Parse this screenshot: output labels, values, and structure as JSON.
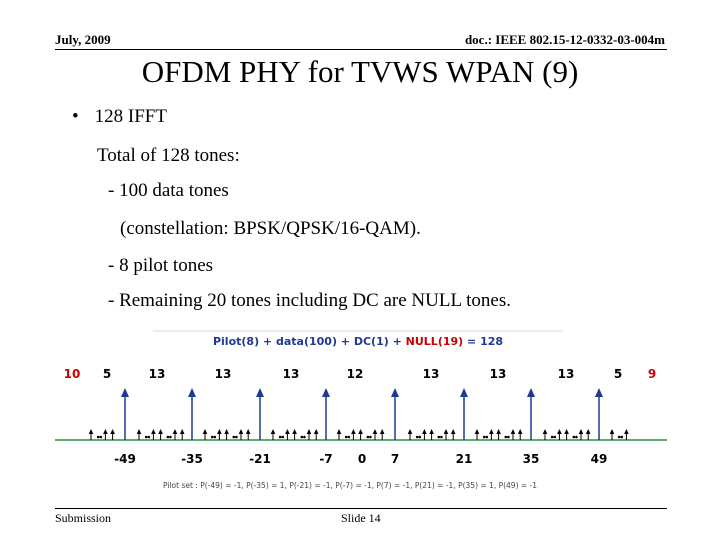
{
  "header": {
    "date": "July, 2009",
    "doc": "doc.: IEEE 802.15-12-0332-03-004m"
  },
  "title": "OFDM PHY for TVWS WPAN (9)",
  "body": {
    "bullet": "128 IFFT",
    "lines": [
      "Total of 128 tones:",
      "- 100 data tones",
      "(constellation: BPSK/QPSK/16-QAM).",
      "- 8 pilot tones",
      "- Remaining 20 tones including DC are NULL tones."
    ]
  },
  "figure": {
    "caption_parts": [
      {
        "text": "Pilot(8) + data(100) + ",
        "color": "#1f3a93"
      },
      {
        "text": "DC(1)",
        "color": "#1f3a93"
      },
      {
        "text": " + ",
        "color": "#1f3a93"
      },
      {
        "text": "NULL(19)",
        "color": "#cc0000"
      },
      {
        "text": " = 128",
        "color": "#1f3a93"
      }
    ],
    "segment_counts": [
      {
        "text": "10",
        "color": "#cc0000"
      },
      {
        "text": "5",
        "color": "#000000"
      },
      {
        "text": "13",
        "color": "#000000"
      },
      {
        "text": "13",
        "color": "#000000"
      },
      {
        "text": "13",
        "color": "#000000"
      },
      {
        "text": "12",
        "color": "#000000"
      },
      {
        "text": "13",
        "color": "#000000"
      },
      {
        "text": "13",
        "color": "#000000"
      },
      {
        "text": "13",
        "color": "#000000"
      },
      {
        "text": "5",
        "color": "#000000"
      },
      {
        "text": "9",
        "color": "#cc0000"
      }
    ],
    "pilot_indices": [
      "-49",
      "-35",
      "-21",
      "-7",
      "7",
      "21",
      "35",
      "49"
    ],
    "dc_label": "0",
    "pilot_set": "Pilot set : P(-49) = -1,  P(-35) = 1,  P(-21) = -1,  P(-7) = -1,  P(7) = -1,  P(21) = -1,  P(35) = 1,  P(49) = -1",
    "colors": {
      "axis": "#2e8b3d",
      "pilot": "#1f3a93",
      "null": "#cc0000"
    }
  },
  "footer": {
    "left": "Submission",
    "mid": "Slide 14"
  }
}
